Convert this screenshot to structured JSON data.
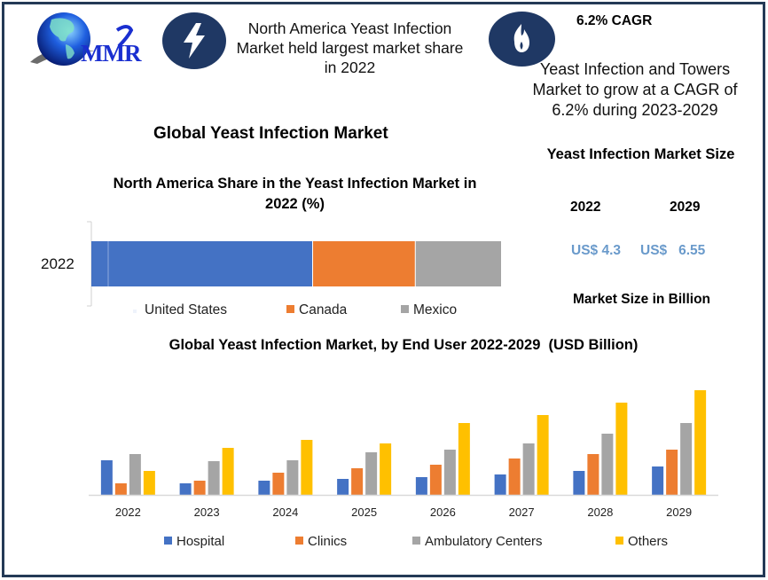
{
  "brand": {
    "logo_text": "MMR"
  },
  "header": {
    "highlight_icon": "lightning-icon",
    "highlight_text": "North America Yeast Infection Market held largest market share in 2022",
    "cagr_icon": "flame-icon",
    "cagr_title": "6.2% CAGR",
    "cagr_text": "Yeast Infection and Towers Market to grow at a CAGR of 6.2% during 2023-2029"
  },
  "main_title": "Global Yeast Infection Market",
  "market_size": {
    "title": "Yeast Infection Market Size",
    "years": [
      "2022",
      "2029"
    ],
    "values": [
      "US$ 4.3",
      "US$   6.55"
    ],
    "unit_note": "Market Size in Billion"
  },
  "colors": {
    "frame": "#243a56",
    "icon_bg": "#1f3864",
    "blue": "#4472c4",
    "orange": "#ed7d31",
    "gray": "#a5a5a5",
    "yellow": "#ffc000",
    "value_text": "#6a9acb"
  },
  "chart_data": [
    {
      "type": "bar",
      "orientation": "horizontal",
      "stacked": true,
      "title": "North America Share in the Yeast Infection  Market in 2022 (%)",
      "categories": [
        "2022"
      ],
      "series": [
        {
          "name": "United States",
          "values": [
            54
          ],
          "color": "#4472c4"
        },
        {
          "name": "Canada",
          "values": [
            25
          ],
          "color": "#ed7d31"
        },
        {
          "name": "Mexico",
          "values": [
            21
          ],
          "color": "#a5a5a5"
        }
      ],
      "xlim": [
        0,
        100
      ],
      "xlabel": "",
      "ylabel": "",
      "grid": false,
      "legend": "bottom"
    },
    {
      "type": "bar",
      "orientation": "vertical",
      "stacked": false,
      "title": "Global Yeast Infection Market, by End User 2022-2029  (USD Billion)",
      "categories": [
        "2022",
        "2023",
        "2024",
        "2025",
        "2026",
        "2027",
        "2028",
        "2029"
      ],
      "series": [
        {
          "name": "Hospital",
          "values": [
            3.9,
            1.3,
            1.6,
            1.8,
            2.0,
            2.3,
            2.7,
            3.2
          ],
          "color": "#4472c4"
        },
        {
          "name": "Clinics",
          "values": [
            1.3,
            1.6,
            2.5,
            3.0,
            3.4,
            4.1,
            4.6,
            5.1
          ],
          "color": "#ed7d31"
        },
        {
          "name": "Ambulatory Centers",
          "values": [
            4.6,
            3.8,
            3.9,
            4.8,
            5.1,
            5.8,
            6.9,
            8.1
          ],
          "color": "#a5a5a5"
        },
        {
          "name": "Others",
          "values": [
            2.7,
            5.3,
            6.2,
            5.8,
            8.1,
            9.0,
            10.4,
            11.8
          ],
          "color": "#ffc000"
        }
      ],
      "ylim": [
        0,
        12
      ],
      "xlabel": "",
      "ylabel": "",
      "grid": false,
      "legend": "bottom"
    }
  ]
}
